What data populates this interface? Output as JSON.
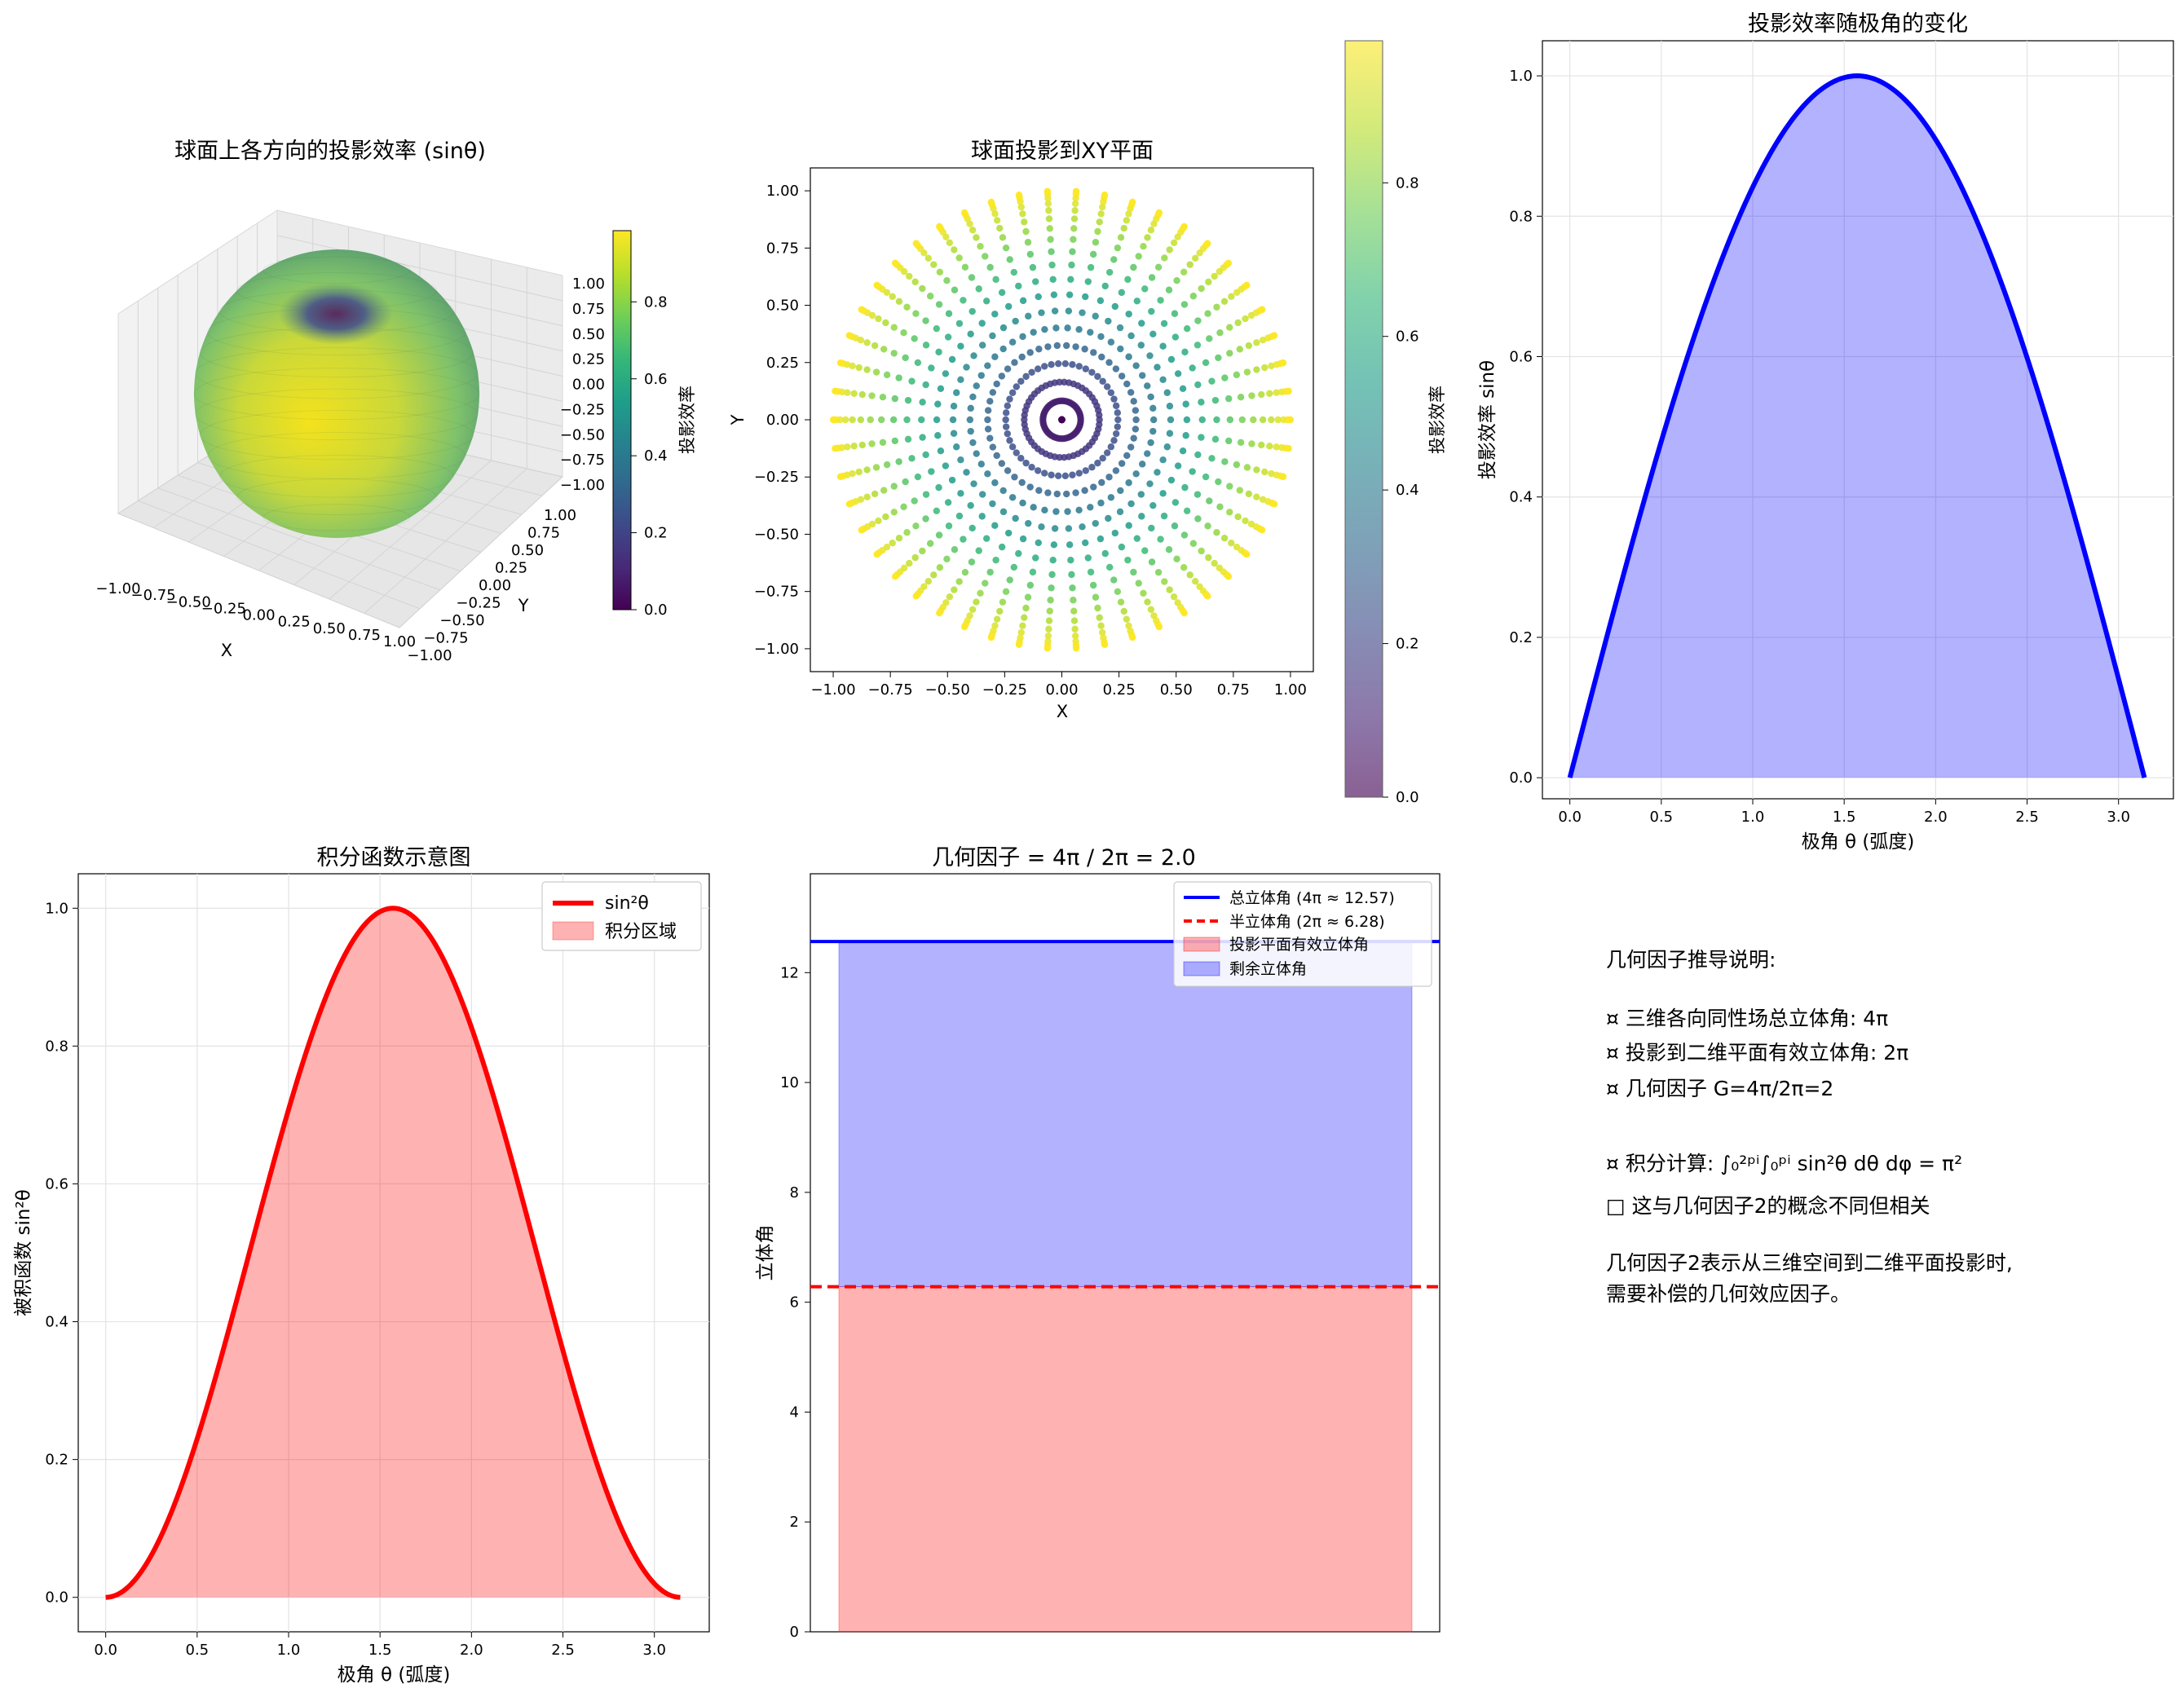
{
  "colors": {
    "viridis": [
      "#440154",
      "#482878",
      "#3e4989",
      "#31688e",
      "#26828e",
      "#1f9e89",
      "#35b779",
      "#6ece58",
      "#b5de2b",
      "#fde725"
    ],
    "red": "#ff0000",
    "blue": "#0000ff",
    "red_fill": "#ffb0b0",
    "blue_fill": "#b0b0ff",
    "grid": "#e3e3e3"
  },
  "panels": {
    "sphere": {
      "title": "球面上各方向的投影效率 (sinθ)",
      "xlabel": "X",
      "ylabel": "Y",
      "x_ticks": [
        "−1.00",
        "−0.75",
        "−0.50",
        "−0.25",
        "0.00",
        "0.25",
        "0.50",
        "0.75",
        "1.00"
      ],
      "y_ticks": [
        "−1.00",
        "−0.75",
        "−0.50",
        "−0.25",
        "0.00",
        "0.25",
        "0.50",
        "0.75",
        "1.00"
      ],
      "z_ticks": [
        "1.00",
        "0.75",
        "0.50",
        "0.25",
        "0.00",
        "−0.25",
        "−0.50",
        "−0.75",
        "−1.00"
      ],
      "colorbar_label": "投影效率",
      "colorbar_ticks": [
        "0.0",
        "0.2",
        "0.4",
        "0.6",
        "0.8"
      ]
    },
    "projection": {
      "title": "球面投影到XY平面",
      "xlabel": "X",
      "ylabel": "Y",
      "x_ticks": [
        "−1.00",
        "−0.75",
        "−0.50",
        "−0.25",
        "0.00",
        "0.25",
        "0.50",
        "0.75",
        "1.00"
      ],
      "y_ticks": [
        "1.00",
        "0.75",
        "0.50",
        "0.25",
        "0.00",
        "−0.25",
        "−0.50",
        "−0.75",
        "−1.00"
      ],
      "colorbar_label": "投影效率",
      "colorbar_ticks": [
        "0.0",
        "0.2",
        "0.4",
        "0.6",
        "0.8"
      ]
    },
    "efficiency": {
      "title": "投影效率随极角的变化",
      "xlabel": "极角 θ (弧度)",
      "ylabel": "投影效率 sinθ",
      "x_ticks": [
        "0.0",
        "0.5",
        "1.0",
        "1.5",
        "2.0",
        "2.5",
        "3.0"
      ],
      "y_ticks": [
        "0.0",
        "0.2",
        "0.4",
        "0.6",
        "0.8",
        "1.0"
      ]
    },
    "integrand": {
      "title": "积分函数示意图",
      "xlabel": "极角 θ (弧度)",
      "ylabel": "被积函数 sin²θ",
      "x_ticks": [
        "0.0",
        "0.5",
        "1.0",
        "1.5",
        "2.0",
        "2.5",
        "3.0"
      ],
      "y_ticks": [
        "0.0",
        "0.2",
        "0.4",
        "0.6",
        "0.8",
        "1.0"
      ],
      "legend": [
        "sin²θ",
        "积分区域"
      ]
    },
    "solid_angle": {
      "title": "几何因子 = 4π / 2π = 2.0",
      "ylabel": "立体角",
      "y_ticks": [
        "0",
        "2",
        "4",
        "6",
        "8",
        "10",
        "12"
      ],
      "legend": [
        "总立体角 (4π ≈ 12.57)",
        "半立体角 (2π ≈ 6.28)",
        "投影平面有效立体角",
        "剩余立体角"
      ]
    },
    "notes": {
      "heading": "几何因子推导说明:",
      "bullet1": "¤ 三维各向同性场总立体角: 4π",
      "bullet2": "¤ 投影到二维平面有效立体角: 2π",
      "bullet3": "¤ 几何因子 G=4π/2π=2",
      "bullet4": "¤ 积分计算: ∫₀²ᵖⁱ∫₀ᵖⁱ sin²θ dθ dφ = π²",
      "bullet5": "□ 这与几何因子2的概念不同但相关",
      "para1": "几何因子2表示从三维空间到二维平面投影时,",
      "para2": "需要补偿的几何效应因子。"
    }
  },
  "chart_data": [
    {
      "type": "surface",
      "title": "球面上各方向的投影效率 (sinθ)",
      "function": "sin(theta) on the unit sphere",
      "xlim": [
        -1,
        1
      ],
      "ylim": [
        -1,
        1
      ],
      "zlim": [
        -1,
        1
      ],
      "colormap": "viridis",
      "colorbar_range": [
        0,
        1
      ]
    },
    {
      "type": "scatter",
      "title": "球面投影到XY平面",
      "xlim": [
        -1.1,
        1.1
      ],
      "ylim": [
        -1.1,
        1.1
      ],
      "rings": 20,
      "spokes": 50,
      "x": "sin(theta)·cos(phi)",
      "y": "sin(theta)·sin(phi)",
      "color": "sin(theta)",
      "colormap": "viridis",
      "colorbar_range": [
        0,
        1
      ]
    },
    {
      "type": "area",
      "title": "投影效率随极角的变化",
      "x": [
        0,
        0.2618,
        0.5236,
        0.7854,
        1.0472,
        1.309,
        1.5708,
        1.8326,
        2.0944,
        2.3562,
        2.618,
        2.8798,
        3.1416
      ],
      "y": [
        0,
        0.2588,
        0.5,
        0.7071,
        0.866,
        0.9659,
        1,
        0.9659,
        0.866,
        0.7071,
        0.5,
        0.2588,
        0
      ],
      "xlim": [
        -0.15,
        3.3
      ],
      "ylim": [
        -0.03,
        1.05
      ],
      "grid": true
    },
    {
      "type": "area",
      "title": "积分函数示意图",
      "series": [
        {
          "name": "sin²θ",
          "x": [
            0,
            0.2618,
            0.5236,
            0.7854,
            1.0472,
            1.309,
            1.5708,
            1.8326,
            2.0944,
            2.3562,
            2.618,
            2.8798,
            3.1416
          ],
          "y": [
            0,
            0.067,
            0.25,
            0.5,
            0.75,
            0.933,
            1,
            0.933,
            0.75,
            0.5,
            0.25,
            0.067,
            0
          ]
        }
      ],
      "fill_label": "积分区域",
      "xlim": [
        -0.15,
        3.3
      ],
      "ylim": [
        -0.05,
        1.05
      ],
      "legend": "top-right",
      "grid": true
    },
    {
      "type": "bar",
      "title": "几何因子 = 4π / 2π = 2.0",
      "ylabel": "立体角",
      "values": {
        "total": 12.566,
        "half": 6.283
      },
      "series": [
        {
          "name": "投影平面有效立体角",
          "bottom": 0,
          "top": 6.283
        },
        {
          "name": "剩余立体角",
          "bottom": 6.283,
          "top": 12.566
        }
      ],
      "lines": [
        {
          "name": "总立体角 (4π ≈ 12.57)",
          "y": 12.566,
          "style": "solid"
        },
        {
          "name": "半立体角 (2π ≈ 6.28)",
          "y": 6.283,
          "style": "dashed"
        }
      ],
      "ylim": [
        0,
        13.8
      ],
      "legend": "top-right"
    }
  ]
}
